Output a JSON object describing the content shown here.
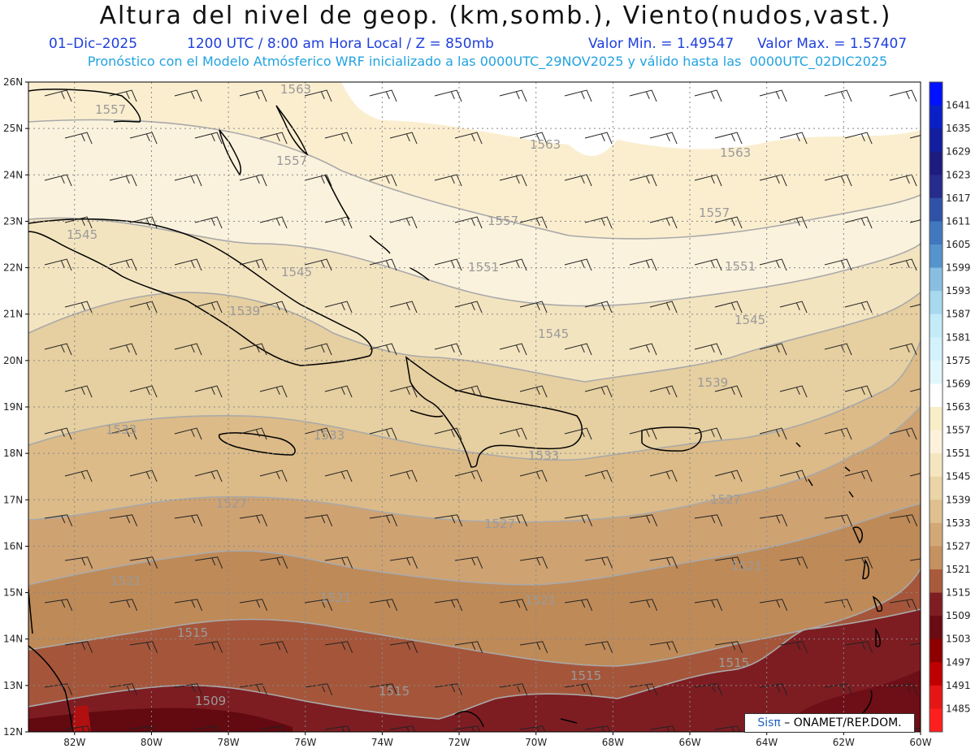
{
  "header": {
    "title": "Altura del nivel de geop. (km,somb.), Viento(nudos,vast.)",
    "date": "01–Dic–2025",
    "time_info": "1200 UTC / 8:00 am Hora Local / Z = 850mb",
    "min_value": "Valor Min. = 1.49547",
    "max_value": "Valor Max. = 1.57407",
    "forecast_info": "Pronóstico con el Modelo Atmósferico WRF inicializado a las 0000UTC_29NOV2025 y válido hasta las  0000UTC_02DIC2025"
  },
  "axes": {
    "lat_labels": [
      "26N",
      "25N",
      "24N",
      "23N",
      "22N",
      "21N",
      "20N",
      "19N",
      "18N",
      "17N",
      "16N",
      "15N",
      "14N",
      "13N",
      "12N"
    ],
    "lon_labels": [
      "82W",
      "80W",
      "78W",
      "76W",
      "74W",
      "72W",
      "70W",
      "68W",
      "66W",
      "64W",
      "62W",
      "60W"
    ],
    "lat_range": [
      12,
      26
    ],
    "lon_range": [
      -83.2,
      -60
    ],
    "grid": "dotted"
  },
  "colorbar": {
    "labels": [
      "1641",
      "1635",
      "1629",
      "1623",
      "1617",
      "1611",
      "1605",
      "1599",
      "1593",
      "1587",
      "1581",
      "1575",
      "1569",
      "1563",
      "1557",
      "1551",
      "1545",
      "1539",
      "1533",
      "1527",
      "1521",
      "1515",
      "1509",
      "1503",
      "1497",
      "1491",
      "1485"
    ],
    "colors": [
      "#0011ff",
      "#0b1fc8",
      "#121da0",
      "#1b1b80",
      "#262c8c",
      "#2f52a6",
      "#4077bf",
      "#5594cc",
      "#88bfe0",
      "#a8d9ee",
      "#c3ecf8",
      "#d4f2fb",
      "#e2f7fc",
      "#ffffff",
      "#f8eec8",
      "#fbf1dc",
      "#f5e6c0",
      "#ebd4a6",
      "#dfc08e",
      "#d3a877",
      "#c4915f",
      "#a85a3a",
      "#7e1e22",
      "#6a0a12",
      "#8e0000",
      "#c00000",
      "#e61515",
      "#ff1e1e"
    ]
  },
  "contour_labels": [
    "1563",
    "1557",
    "1551",
    "1545",
    "1539",
    "1533",
    "1527",
    "1521",
    "1515",
    "1509"
  ],
  "credit": {
    "sis": "Sisπ",
    "org": " – ONAMET/REP.DOM."
  }
}
